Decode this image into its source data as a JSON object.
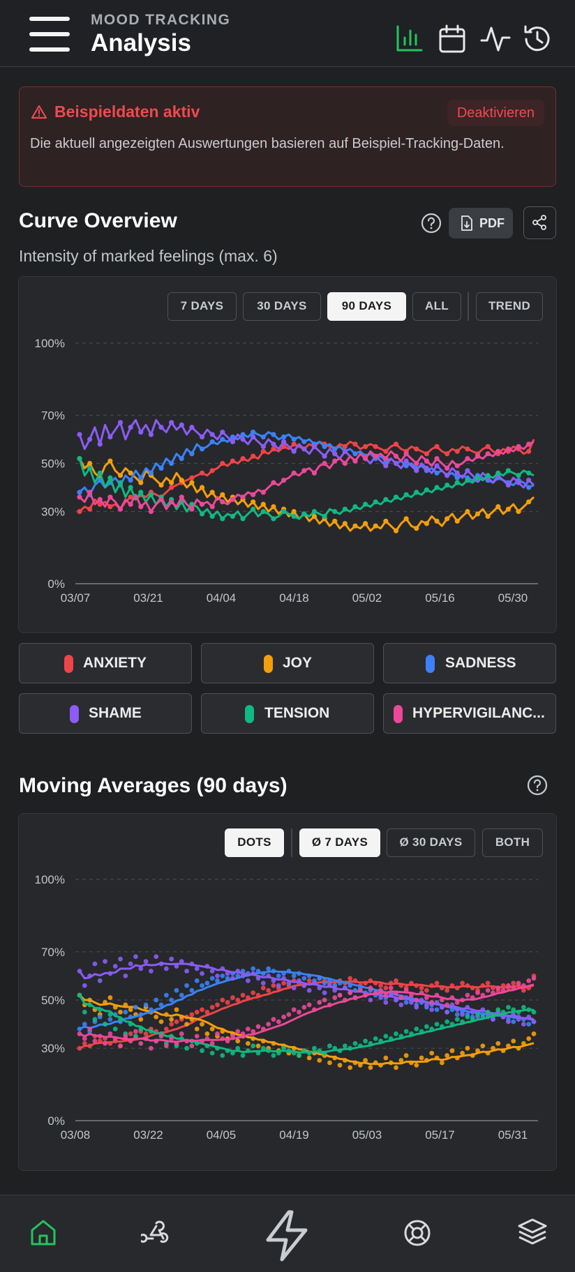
{
  "header": {
    "eyebrow": "MOOD TRACKING",
    "title": "Analysis",
    "icons": [
      "bar-chart-icon",
      "calendar-icon",
      "pulse-icon",
      "history-icon"
    ],
    "active_icon": "bar-chart-icon"
  },
  "alert": {
    "title": "Beispieldaten aktiv",
    "button": "Deaktivieren",
    "text": "Die aktuell angezeigten Auswertungen basieren auf Beispiel-Tracking-Daten."
  },
  "curve": {
    "title": "Curve Overview",
    "subtitle": "Intensity of marked feelings (max. 6)",
    "pdf_label": "PDF",
    "ranges": [
      "7 DAYS",
      "30 DAYS",
      "90 DAYS",
      "ALL"
    ],
    "active_range": "90 DAYS",
    "trend_label": "TREND"
  },
  "legend": [
    {
      "label": "ANXIETY",
      "color": "#ef4449"
    },
    {
      "label": "JOY",
      "color": "#f59e0b"
    },
    {
      "label": "SADNESS",
      "color": "#3b82f6"
    },
    {
      "label": "SHAME",
      "color": "#8b5cf6"
    },
    {
      "label": "TENSION",
      "color": "#10b981"
    },
    {
      "label": "HYPERVIGILANC...",
      "color": "#ec4899"
    }
  ],
  "moving": {
    "title": "Moving Averages (90 days)",
    "modes": [
      "DOTS",
      "Ø 7 DAYS",
      "Ø 30 DAYS",
      "BOTH"
    ],
    "active_modes": [
      "DOTS",
      "Ø 7 DAYS"
    ]
  },
  "chart_data": [
    {
      "type": "line",
      "ylim": [
        0,
        100
      ],
      "y_ticks": [
        "0%",
        "30%",
        "50%",
        "70%",
        "100%"
      ],
      "x_ticks": [
        "03/07",
        "03/21",
        "04/04",
        "04/18",
        "05/02",
        "05/16",
        "05/30"
      ],
      "series": [
        {
          "name": "ANXIETY",
          "color": "#ef4449",
          "y": [
            30,
            32,
            31,
            35,
            33,
            34,
            32,
            33,
            31,
            34,
            36,
            35,
            37,
            36,
            38,
            37,
            36,
            38,
            40,
            41,
            42,
            43,
            44,
            45,
            46,
            45,
            47,
            48,
            50,
            49,
            51,
            50,
            52,
            51,
            53,
            52,
            55,
            54,
            56,
            55,
            57,
            56,
            58,
            57,
            56,
            58,
            57,
            59,
            58,
            57,
            56,
            58,
            57,
            59,
            58,
            56,
            57,
            58,
            57,
            56,
            55,
            57,
            58,
            56,
            55,
            57,
            56,
            55,
            54,
            56,
            57,
            55,
            54,
            56,
            55,
            57,
            56,
            55,
            54,
            56,
            57,
            55,
            54,
            56,
            55,
            57,
            56,
            54,
            55,
            60
          ]
        },
        {
          "name": "JOY",
          "color": "#f59e0b",
          "y": [
            52,
            48,
            50,
            46,
            44,
            49,
            51,
            47,
            45,
            48,
            46,
            44,
            42,
            47,
            45,
            43,
            41,
            44,
            42,
            46,
            43,
            40,
            42,
            38,
            40,
            36,
            38,
            35,
            37,
            34,
            36,
            33,
            35,
            32,
            34,
            31,
            33,
            30,
            32,
            29,
            31,
            28,
            30,
            27,
            29,
            26,
            28,
            25,
            27,
            24,
            26,
            23,
            25,
            22,
            24,
            23,
            25,
            22,
            24,
            23,
            26,
            24,
            22,
            25,
            27,
            24,
            23,
            26,
            25,
            28,
            26,
            24,
            27,
            29,
            26,
            28,
            30,
            27,
            29,
            31,
            28,
            30,
            32,
            29,
            31,
            33,
            30,
            32,
            34,
            36
          ]
        },
        {
          "name": "SADNESS",
          "color": "#3b82f6",
          "y": [
            38,
            40,
            37,
            41,
            43,
            40,
            42,
            44,
            41,
            45,
            43,
            47,
            44,
            48,
            46,
            50,
            48,
            52,
            50,
            54,
            52,
            56,
            54,
            58,
            56,
            57,
            59,
            58,
            60,
            59,
            61,
            60,
            62,
            61,
            63,
            62,
            61,
            63,
            62,
            60,
            61,
            62,
            60,
            61,
            59,
            60,
            58,
            59,
            57,
            58,
            56,
            57,
            55,
            56,
            54,
            55,
            53,
            54,
            52,
            53,
            51,
            52,
            50,
            51,
            49,
            50,
            48,
            49,
            47,
            48,
            46,
            47,
            45,
            46,
            44,
            45,
            44,
            43,
            45,
            44,
            43,
            42,
            44,
            43,
            42,
            41,
            43,
            42,
            40,
            41
          ]
        },
        {
          "name": "SHAME",
          "color": "#8b5cf6",
          "y": [
            62,
            56,
            60,
            65,
            58,
            66,
            61,
            64,
            67,
            60,
            65,
            68,
            63,
            66,
            62,
            68,
            65,
            63,
            67,
            64,
            66,
            62,
            65,
            63,
            61,
            64,
            62,
            60,
            63,
            61,
            59,
            62,
            60,
            58,
            61,
            59,
            57,
            60,
            58,
            56,
            59,
            57,
            55,
            58,
            56,
            54,
            57,
            55,
            53,
            56,
            54,
            52,
            55,
            53,
            51,
            54,
            52,
            50,
            53,
            51,
            49,
            52,
            50,
            48,
            51,
            49,
            47,
            50,
            48,
            46,
            49,
            47,
            45,
            48,
            46,
            44,
            47,
            45,
            43,
            46,
            44,
            42,
            45,
            43,
            41,
            44,
            42,
            40,
            43,
            41
          ]
        },
        {
          "name": "TENSION",
          "color": "#10b981",
          "y": [
            52,
            45,
            48,
            42,
            46,
            40,
            44,
            38,
            42,
            36,
            40,
            35,
            38,
            34,
            37,
            33,
            36,
            32,
            35,
            31,
            34,
            30,
            33,
            32,
            29,
            31,
            28,
            30,
            27,
            29,
            28,
            30,
            27,
            29,
            31,
            28,
            30,
            29,
            27,
            28,
            30,
            29,
            28,
            27,
            29,
            28,
            30,
            29,
            28,
            31,
            30,
            29,
            31,
            30,
            32,
            31,
            33,
            32,
            34,
            33,
            35,
            34,
            36,
            35,
            37,
            36,
            38,
            37,
            39,
            38,
            40,
            39,
            41,
            40,
            42,
            41,
            43,
            42,
            44,
            43,
            45,
            44,
            46,
            45,
            47,
            46,
            45,
            47,
            46,
            45
          ]
        },
        {
          "name": "HYPERVIGILANC...",
          "color": "#ec4899",
          "y": [
            36,
            34,
            38,
            33,
            35,
            32,
            36,
            34,
            31,
            35,
            33,
            37,
            32,
            34,
            30,
            33,
            35,
            31,
            34,
            32,
            36,
            33,
            31,
            35,
            33,
            34,
            32,
            36,
            34,
            33,
            35,
            37,
            36,
            38,
            37,
            39,
            38,
            40,
            42,
            41,
            43,
            44,
            46,
            45,
            47,
            48,
            46,
            49,
            50,
            48,
            51,
            52,
            50,
            53,
            51,
            54,
            52,
            55,
            53,
            54,
            52,
            55,
            53,
            51,
            54,
            52,
            50,
            53,
            51,
            49,
            52,
            50,
            48,
            51,
            49,
            50,
            52,
            51,
            53,
            52,
            54,
            53,
            55,
            54,
            56,
            55,
            57,
            56,
            58,
            59
          ]
        }
      ]
    },
    {
      "type": "line",
      "ylim": [
        0,
        100
      ],
      "y_ticks": [
        "0%",
        "30%",
        "50%",
        "70%",
        "100%"
      ],
      "x_ticks": [
        "03/08",
        "03/22",
        "04/05",
        "04/19",
        "05/03",
        "05/17",
        "05/31"
      ],
      "mode": "dots + 7-day average"
    }
  ],
  "bottom_nav": {
    "items": [
      "home-icon",
      "webhook-icon",
      "lightning-icon",
      "lifebuoy-icon",
      "layers-icon"
    ],
    "active": "home-icon"
  }
}
